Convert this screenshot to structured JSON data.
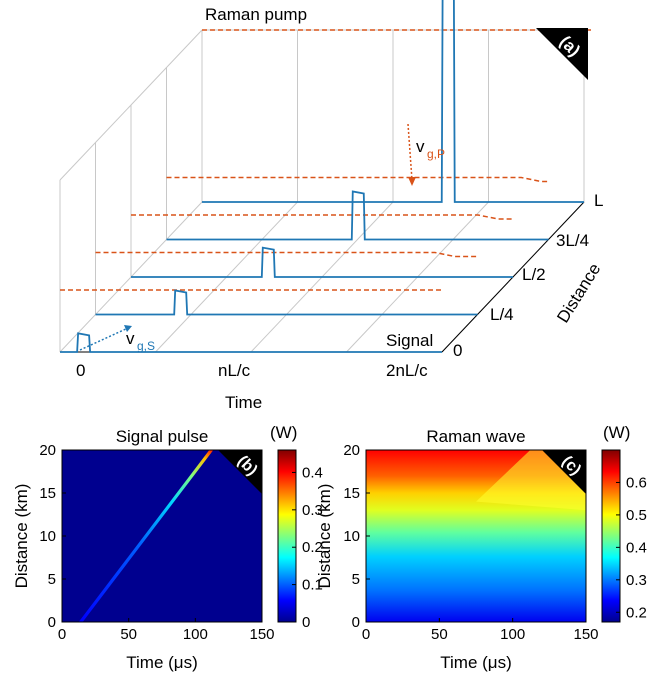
{
  "colors": {
    "signal": "#1f77b4",
    "pump": "#d95319",
    "panel_tag_bg": "#000000",
    "panel_tag_fg": "#ffffff"
  },
  "chart_data": [
    {
      "panel": "(a)",
      "type": "line",
      "title": "",
      "xlabel": "Time",
      "ylabel": "Distance",
      "x_ticks": [
        "0",
        "nL/c",
        "2nL/c"
      ],
      "y_ticks": [
        "0",
        "L/4",
        "L/2",
        "3L/4",
        "L"
      ],
      "annotations": {
        "pump_label": "Raman pump",
        "signal_label": "Signal",
        "vgs_main": "v",
        "vgs_sub": "g,S",
        "vgp_main": "v",
        "vgp_sub": "g,P"
      },
      "series": [
        {
          "name": "Signal",
          "distance_levels": [
            0,
            0.25,
            0.5,
            0.75,
            1
          ],
          "pulse_time_fraction": [
            0.04,
            0.3,
            0.52,
            0.75,
            0.98
          ],
          "relative_amplitude": [
            0.35,
            0.45,
            0.55,
            0.9,
            4.5
          ]
        },
        {
          "name": "Raman pump",
          "distance_levels": [
            0,
            0.25,
            0.5,
            0.75,
            1
          ],
          "depletion_time_fraction": [
            null,
            0.92,
            0.94,
            0.96,
            null
          ]
        }
      ]
    },
    {
      "panel": "(b)",
      "type": "heatmap",
      "title": "Signal pulse",
      "xlabel": "Time (μs)",
      "ylabel": "Distance (km)",
      "colorbar_label": "(W)",
      "xlim": [
        0,
        150
      ],
      "ylim": [
        0,
        20
      ],
      "x_ticks": [
        0,
        50,
        100,
        150
      ],
      "y_ticks": [
        0,
        5,
        10,
        15,
        20
      ],
      "clim": [
        0,
        0.46
      ],
      "cbar_ticks": [
        0,
        0.1,
        0.2,
        0.3,
        0.4
      ],
      "pulse_path": {
        "time_start": 14,
        "time_end": 112,
        "distance_start": 0,
        "distance_end": 20,
        "power_start": 0.05,
        "power_end": 0.46
      }
    },
    {
      "panel": "(c)",
      "type": "heatmap",
      "title": "Raman wave",
      "xlabel": "Time (μs)",
      "ylabel": "Distance (km)",
      "colorbar_label": "(W)",
      "xlim": [
        0,
        150
      ],
      "ylim": [
        0,
        20
      ],
      "x_ticks": [
        0,
        50,
        100,
        150
      ],
      "y_ticks": [
        0,
        5,
        10,
        15,
        20
      ],
      "clim": [
        0.17,
        0.7
      ],
      "cbar_ticks": [
        0.2,
        0.3,
        0.4,
        0.5,
        0.6
      ],
      "power_at_distance": [
        [
          0,
          0.2
        ],
        [
          5,
          0.3
        ],
        [
          10,
          0.4
        ],
        [
          15,
          0.52
        ],
        [
          18,
          0.6
        ],
        [
          20,
          0.7
        ]
      ],
      "depletion_front": {
        "time_start": 112,
        "distance_start": 20,
        "time_end": 150,
        "distance_end": 13
      }
    }
  ]
}
